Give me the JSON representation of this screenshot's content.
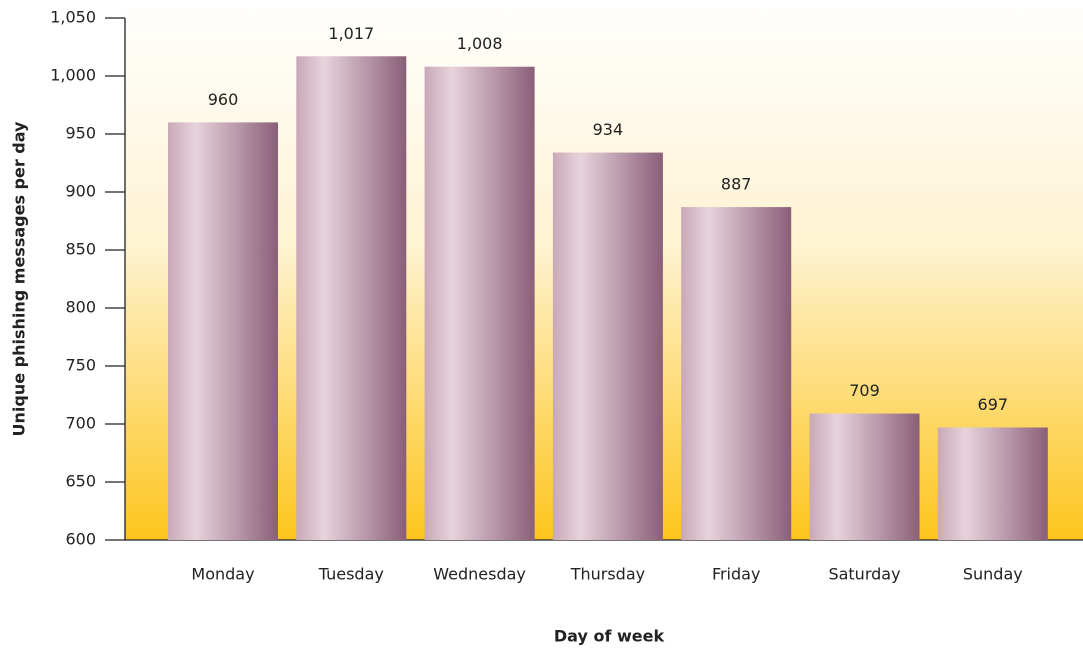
{
  "chart_data": {
    "type": "bar",
    "x_label": "Day of week",
    "y_label": "Unique phishing messages per day",
    "categories": [
      "Monday",
      "Tuesday",
      "Wednesday",
      "Thursday",
      "Friday",
      "Saturday",
      "Sunday"
    ],
    "values": [
      960,
      1017,
      1008,
      934,
      887,
      709,
      697
    ],
    "value_labels": [
      "960",
      "1,017",
      "1,008",
      "934",
      "887",
      "709",
      "697"
    ],
    "color": "#8a5f78",
    "ylim": [
      600,
      1050
    ],
    "yticks": [
      600,
      650,
      700,
      750,
      800,
      850,
      900,
      950,
      {
        "value": 1000,
        "label": "1,000"
      },
      {
        "value": 1050,
        "label": "1,050"
      }
    ],
    "grid": false
  }
}
